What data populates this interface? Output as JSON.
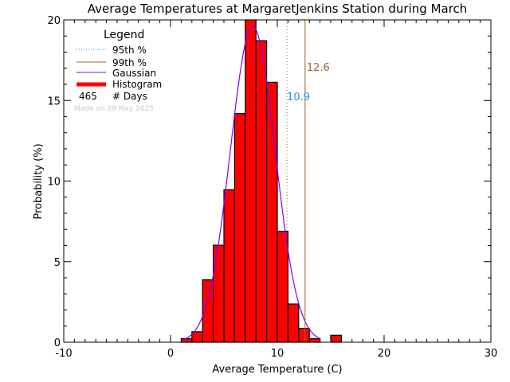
{
  "chart_data": {
    "type": "bar",
    "title": "Average Temperatures at MargaretJenkins Station during March",
    "xlabel": "Average Temperature (C)",
    "ylabel": "Probability (%)",
    "xlim": [
      -10,
      30
    ],
    "ylim": [
      0,
      20
    ],
    "xticks": [
      "-10",
      "0",
      "10",
      "20",
      "30"
    ],
    "yticks": [
      "0",
      "5",
      "10",
      "15",
      "20"
    ],
    "bin_edges": [
      1,
      2,
      3,
      4,
      5,
      6,
      7,
      8,
      9,
      10,
      11,
      12,
      13,
      14,
      15,
      16
    ],
    "values": [
      0.22,
      0.65,
      3.87,
      6.02,
      9.46,
      14.19,
      20.22,
      18.71,
      16.13,
      6.88,
      2.37,
      0.86,
      0.22,
      0,
      0.43
    ],
    "gaussian": {
      "mean": 7.7,
      "sigma": 2.1,
      "peak": 19.6
    },
    "p95": {
      "value": 10.9,
      "label": "10.9",
      "color": "#1E90FF"
    },
    "p99": {
      "value": 12.6,
      "label": "12.6",
      "color": "#A0642D"
    },
    "colors": {
      "histogram": "#FF0000",
      "gaussian": "#8000FF"
    },
    "legend": {
      "title": "Legend",
      "items": [
        "95th %",
        "99th %",
        "Gaussian",
        "Histogram"
      ],
      "days_count": "465",
      "days_label": "# Days",
      "made_on": "Made on 29 May 2025"
    }
  }
}
